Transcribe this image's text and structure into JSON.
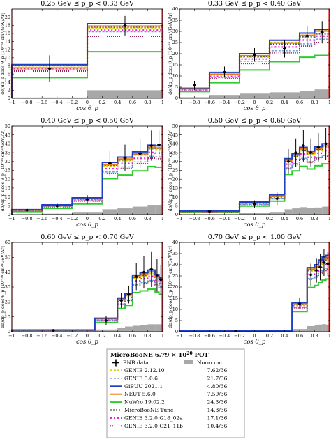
{
  "chart_data": [
    {
      "type": "step",
      "title": "0.25 GeV ≤ p_p < 0.33 GeV",
      "xlabel": "cos θ_p",
      "ylabel": "dσ/dp_p dcos θ_p [10⁻³⁸ cm²/GeV/Ar]",
      "xlim": [
        -1,
        1
      ],
      "ylim": [
        0,
        22
      ],
      "xticks": [
        -1,
        -0.8,
        -0.6,
        -0.4,
        -0.2,
        0,
        0.2,
        0.4,
        0.6,
        0.8,
        1
      ],
      "xticklabels": [
        "−1",
        "−0.8",
        "−0.6",
        "−0.4",
        "−0.2",
        "0",
        "0.2",
        "0.4",
        "0.6",
        "0.8",
        "1"
      ],
      "yticks": [
        0,
        2,
        4,
        6,
        8,
        10,
        12,
        14,
        16,
        18,
        20
      ],
      "bin_edges": [
        -1,
        0,
        1
      ],
      "data": {
        "x": [
          -0.5,
          0.5
        ],
        "y": [
          7.3,
          17.9
        ],
        "yerr": [
          3.3,
          2.4
        ]
      },
      "norm_unc": [
        0.2,
        2.0
      ],
      "models": {
        "genie2": [
          8.0,
          17.3
        ],
        "genie3": [
          7.0,
          16.4
        ],
        "gibuu": [
          8.3,
          18.4
        ],
        "neut": [
          7.5,
          17.8
        ],
        "nuwro": [
          5.1,
          11.5
        ],
        "uboone_tune": [
          8.1,
          17.6
        ],
        "g18": [
          7.3,
          16.8
        ],
        "g21": [
          6.7,
          15.3
        ]
      }
    },
    {
      "type": "step",
      "title": "0.33 GeV ≤ p_p < 0.40 GeV",
      "xlabel": "cos θ_p",
      "ylabel": "dσ/dp_p dcos θ_p [10⁻³⁸ cm²/GeV/Ar]",
      "xlim": [
        -1,
        1
      ],
      "ylim": [
        0,
        40
      ],
      "xticks": [
        -1,
        -0.8,
        -0.6,
        -0.4,
        -0.2,
        0,
        0.2,
        0.4,
        0.6,
        0.8,
        1
      ],
      "xticklabels": [
        "−1",
        "−0.8",
        "−0.6",
        "−0.4",
        "−0.2",
        "0",
        "0.2",
        "0.4",
        "0.6",
        "0.8",
        "1"
      ],
      "yticks": [
        0,
        5,
        10,
        15,
        20,
        25,
        30,
        35,
        40
      ],
      "bin_edges": [
        -1,
        -0.6,
        -0.2,
        0.2,
        0.6,
        0.8,
        1
      ],
      "data": {
        "x": [
          -0.8,
          -0.4,
          0,
          0.4,
          0.7,
          0.9
        ],
        "y": [
          5.8,
          11.7,
          19.5,
          22.3,
          28.0,
          29.6
        ],
        "yerr": [
          2.0,
          2.5,
          3.0,
          4.0,
          4.5,
          5.0
        ]
      },
      "norm_unc": [
        0.5,
        1.2,
        2.1,
        2.7,
        3.4,
        4.0
      ],
      "models": {
        "genie2": [
          4.3,
          10.6,
          18.5,
          25.0,
          28.2,
          30.3
        ],
        "genie3": [
          3.9,
          9.3,
          16.6,
          21.3,
          24.4,
          26.5
        ],
        "gibuu": [
          4.5,
          11.6,
          20.0,
          26.0,
          29.2,
          30.9
        ],
        "neut": [
          4.3,
          10.8,
          19.1,
          24.8,
          28.2,
          30.1
        ],
        "nuwro": [
          3.0,
          7.0,
          12.7,
          16.4,
          18.4,
          19.2
        ],
        "uboone_tune": [
          4.4,
          10.8,
          18.8,
          24.4,
          27.6,
          28.9
        ],
        "g18": [
          3.9,
          9.8,
          17.6,
          23.0,
          26.1,
          27.9
        ],
        "g21": [
          3.6,
          8.8,
          15.6,
          20.4,
          23.4,
          25.0
        ]
      }
    },
    {
      "type": "step",
      "title": "0.40 GeV ≤ p_p < 0.50 GeV",
      "xlabel": "cos θ_p",
      "ylabel": "dσ/dp_p dcos θ_p [10⁻³⁸ cm²/GeV/Ar]",
      "xlim": [
        -1,
        1
      ],
      "ylim": [
        0,
        50
      ],
      "xticks": [
        -1,
        -0.8,
        -0.6,
        -0.4,
        -0.2,
        0,
        0.2,
        0.4,
        0.6,
        0.8,
        1
      ],
      "xticklabels": [
        "−1",
        "−0.8",
        "−0.6",
        "−0.4",
        "−0.2",
        "0",
        "0.2",
        "0.4",
        "0.6",
        "0.8",
        "1"
      ],
      "yticks": [
        0,
        5,
        10,
        15,
        20,
        25,
        30,
        35,
        40,
        45,
        50
      ],
      "bin_edges": [
        -1,
        -0.6,
        -0.2,
        0.2,
        0.4,
        0.6,
        0.8,
        0.9,
        1
      ],
      "data": {
        "x": [
          -0.8,
          -0.4,
          0,
          0.3,
          0.5,
          0.7,
          0.85,
          0.95
        ],
        "y": [
          2.5,
          4.8,
          8.5,
          29.0,
          32.0,
          34.5,
          39.0,
          39.5
        ],
        "yerr": [
          1.1,
          1.5,
          2.5,
          7.0,
          7.5,
          8.0,
          8.5,
          8.0
        ]
      },
      "norm_unc": [
        0.2,
        0.5,
        1.5,
        3.0,
        3.5,
        4.5,
        5.5,
        5.5
      ],
      "models": {
        "genie2": [
          2.6,
          5.0,
          8.6,
          27.5,
          30.5,
          33.6,
          37.1,
          36.9
        ],
        "genie3": [
          2.3,
          4.5,
          7.8,
          24.1,
          27.0,
          29.8,
          33.0,
          32.6
        ],
        "gibuu": [
          2.8,
          5.5,
          9.5,
          29.5,
          32.5,
          35.5,
          39.2,
          38.9
        ],
        "neut": [
          2.7,
          5.2,
          9.0,
          28.3,
          31.4,
          34.4,
          38.1,
          37.7
        ],
        "nuwro": [
          1.7,
          3.5,
          6.0,
          20.3,
          22.4,
          24.7,
          27.2,
          26.8
        ],
        "uboone_tune": [
          2.6,
          5.1,
          8.8,
          28.0,
          31.0,
          34.1,
          37.6,
          37.5
        ],
        "g18": [
          2.4,
          4.8,
          8.2,
          26.0,
          28.9,
          31.8,
          35.1,
          34.8
        ],
        "g21": [
          2.2,
          4.4,
          7.6,
          23.3,
          26.1,
          28.8,
          31.9,
          31.6
        ]
      }
    },
    {
      "type": "step",
      "title": "0.50 GeV ≤ p_p < 0.60 GeV",
      "xlabel": "cos θ_p",
      "ylabel": "dσ/dp_p dcos θ_p [10⁻³⁸ cm²/GeV/Ar]",
      "xlim": [
        -1,
        1
      ],
      "ylim": [
        0,
        50
      ],
      "xticks": [
        -1,
        -0.8,
        -0.6,
        -0.4,
        -0.2,
        0,
        0.2,
        0.4,
        0.6,
        0.8,
        1
      ],
      "xticklabels": [
        "−1",
        "−0.8",
        "−0.6",
        "−0.4",
        "−0.2",
        "0",
        "0.2",
        "0.4",
        "0.6",
        "0.8",
        "1"
      ],
      "yticks": [
        0,
        5,
        10,
        15,
        20,
        25,
        30,
        35,
        40,
        45,
        50
      ],
      "bin_edges": [
        -1,
        -0.2,
        0.2,
        0.4,
        0.5,
        0.6,
        0.7,
        0.8,
        0.9,
        1
      ],
      "data": {
        "x": [
          -0.6,
          0,
          0.3,
          0.45,
          0.55,
          0.65,
          0.75,
          0.85,
          0.95
        ],
        "y": [
          1.8,
          6.0,
          9.0,
          30.0,
          35.0,
          39.0,
          35.0,
          38.0,
          40.0
        ],
        "yerr": [
          0.8,
          2.0,
          3.5,
          7.0,
          8.0,
          9.0,
          8.0,
          8.0,
          9.0
        ]
      },
      "norm_unc": [
        0.2,
        0.8,
        1.5,
        3.0,
        3.5,
        4.2,
        3.8,
        4.0,
        4.5
      ],
      "models": {
        "genie2": [
          1.9,
          6.6,
          10.4,
          30.0,
          32.7,
          36.1,
          34.1,
          36.5,
          37.9
        ],
        "genie3": [
          1.7,
          5.8,
          9.2,
          26.4,
          28.8,
          31.8,
          30.0,
          32.1,
          33.4
        ],
        "gibuu": [
          2.0,
          7.1,
          11.2,
          31.6,
          34.4,
          38.0,
          35.9,
          38.4,
          40.0
        ],
        "neut": [
          1.9,
          6.9,
          10.8,
          30.8,
          33.6,
          37.0,
          35.0,
          37.4,
          38.9
        ],
        "nuwro": [
          1.3,
          4.8,
          7.6,
          22.7,
          24.7,
          27.3,
          25.8,
          27.6,
          28.7
        ],
        "uboone_tune": [
          1.9,
          6.7,
          10.6,
          30.4,
          33.1,
          36.6,
          34.6,
          37.0,
          38.4
        ],
        "g18": [
          1.8,
          6.3,
          9.9,
          28.5,
          31.1,
          34.3,
          32.4,
          34.7,
          36.1
        ],
        "g21": [
          1.6,
          5.7,
          8.9,
          25.9,
          28.2,
          31.2,
          29.5,
          31.6,
          32.8
        ]
      }
    },
    {
      "type": "step",
      "title": "0.60 GeV ≤ p_p < 0.70 GeV",
      "xlabel": "cos θ_p",
      "ylabel": "dσ/dp_p dcos θ_p [10⁻³⁸ cm²/GeV/Ar]",
      "xlim": [
        -1,
        1
      ],
      "ylim": [
        0,
        60
      ],
      "xticks": [
        -1,
        -0.8,
        -0.6,
        -0.4,
        -0.2,
        0,
        0.2,
        0.4,
        0.6,
        0.8,
        1
      ],
      "xticklabels": [
        "−1",
        "−0.8",
        "−0.6",
        "−0.4",
        "−0.2",
        "0",
        "0.2",
        "0.4",
        "0.6",
        "0.8",
        "1"
      ],
      "yticks": [
        0,
        10,
        20,
        30,
        40,
        50,
        60
      ],
      "bin_edges": [
        -1,
        0.1,
        0.4,
        0.5,
        0.6,
        0.7,
        0.8,
        0.9,
        0.95,
        1
      ],
      "data": {
        "x": [
          -0.45,
          0.25,
          0.45,
          0.55,
          0.65,
          0.75,
          0.85,
          0.925,
          0.975
        ],
        "y": [
          1.0,
          7.5,
          21.0,
          25.0,
          37.0,
          40.0,
          42.0,
          38.0,
          35.0
        ],
        "yerr": [
          0.6,
          3.0,
          5.0,
          6.0,
          9.0,
          11.0,
          12.0,
          11.0,
          10.0
        ]
      },
      "norm_unc": [
        0.3,
        1.5,
        2.5,
        3.5,
        4.0,
        4.5,
        5.0,
        5.0,
        5.0
      ],
      "models": {
        "genie2": [
          1.1,
          8.6,
          21.4,
          24.3,
          36.0,
          37.5,
          39.2,
          36.4,
          34.2
        ],
        "genie3": [
          1.0,
          7.5,
          18.8,
          21.4,
          31.7,
          33.0,
          34.5,
          32.0,
          30.1
        ],
        "gibuu": [
          1.2,
          9.1,
          22.6,
          25.6,
          38.0,
          39.6,
          41.4,
          38.4,
          36.1
        ],
        "neut": [
          1.1,
          8.8,
          22.0,
          25.0,
          37.0,
          38.6,
          40.3,
          37.4,
          35.2
        ],
        "nuwro": [
          0.8,
          6.2,
          15.6,
          17.7,
          26.3,
          27.4,
          28.6,
          26.6,
          25.0
        ],
        "uboone_tune": [
          1.1,
          8.7,
          21.7,
          24.7,
          36.6,
          38.1,
          39.8,
          37.0,
          34.8
        ],
        "g18": [
          1.0,
          8.1,
          20.3,
          23.1,
          34.2,
          35.6,
          37.2,
          34.6,
          32.5
        ],
        "g21": [
          0.9,
          7.4,
          18.5,
          21.0,
          31.1,
          32.4,
          33.9,
          31.5,
          29.6
        ]
      }
    },
    {
      "type": "step",
      "title": "0.70 GeV ≤ p_p < 1.00 GeV",
      "xlabel": "cos θ_p",
      "ylabel": "dσ/dp_p dcos θ_p [10⁻³⁸ cm²/GeV/Ar]",
      "xlim": [
        -1,
        1
      ],
      "ylim": [
        0,
        40
      ],
      "xticks": [
        -1,
        -0.8,
        -0.6,
        -0.4,
        -0.2,
        0,
        0.2,
        0.4,
        0.6,
        0.8,
        1
      ],
      "xticklabels": [
        "−1",
        "−0.8",
        "−0.6",
        "−0.4",
        "−0.2",
        "0",
        "0.2",
        "0.4",
        "0.6",
        "0.8",
        "1"
      ],
      "yticks": [
        0,
        5,
        10,
        15,
        20,
        25,
        30,
        35,
        40
      ],
      "bin_edges": [
        -1,
        0.5,
        0.7,
        0.8,
        0.85,
        0.9,
        0.95,
        1
      ],
      "data": {
        "x": [
          -0.25,
          0.6,
          0.75,
          0.825,
          0.875,
          0.925,
          0.975
        ],
        "y": [
          0.3,
          12.5,
          25.5,
          27.5,
          29.0,
          31.0,
          30.5
        ],
        "yerr": [
          0.3,
          2.5,
          5.0,
          5.5,
          6.0,
          6.0,
          5.5
        ]
      },
      "norm_unc": [
        0.1,
        1.2,
        2.5,
        3.0,
        3.2,
        3.4,
        3.2
      ],
      "models": {
        "genie2": [
          0.4,
          12.4,
          27.2,
          28.4,
          30.4,
          31.8,
          32.4
        ],
        "genie3": [
          0.3,
          10.9,
          23.9,
          25.0,
          26.8,
          28.0,
          28.5
        ],
        "gibuu": [
          0.4,
          13.0,
          28.7,
          30.0,
          32.1,
          33.5,
          34.2
        ],
        "neut": [
          0.4,
          12.7,
          28.0,
          29.2,
          31.2,
          32.6,
          33.3
        ],
        "nuwro": [
          0.3,
          9.0,
          19.8,
          20.7,
          22.2,
          23.1,
          23.6
        ],
        "uboone_tune": [
          0.4,
          12.6,
          27.6,
          28.9,
          30.9,
          32.2,
          32.9
        ],
        "g18": [
          0.4,
          11.7,
          25.8,
          27.0,
          28.8,
          30.1,
          30.7
        ],
        "g21": [
          0.3,
          10.7,
          23.5,
          24.5,
          26.2,
          27.4,
          27.9
        ]
      }
    }
  ],
  "legend": {
    "title_prefix": "MicroBooNE 6.79 × 10",
    "title_exp": "20",
    "title_suffix": " POT",
    "data_label": "BNB data",
    "norm_label": "Norm unc.",
    "entries": [
      {
        "key": "genie2",
        "label": "GENIE 2.12.10",
        "chi2": "7.62/36",
        "color": "#d4d400",
        "dash": "3,2",
        "width": 2.2
      },
      {
        "key": "genie3",
        "label": "GENIE 3.0.6",
        "chi2": "21.7/36",
        "color": "#5c9bd6",
        "dash": "3,2",
        "width": 1.4
      },
      {
        "key": "gibuu",
        "label": "GiBUU 2021.1",
        "chi2": "4.80/36",
        "color": "#1f3fc4",
        "dash": "",
        "width": 2.0
      },
      {
        "key": "neut",
        "label": "NEUT 5.6.0",
        "chi2": "7.59/36",
        "color": "#f07a10",
        "dash": "",
        "width": 2.0
      },
      {
        "key": "nuwro",
        "label": "NuWro 19.02.2",
        "chi2": "24.3/36",
        "color": "#2fcc2f",
        "dash": "",
        "width": 2.0
      },
      {
        "key": "uboone_tune",
        "label": "MicroBooNE Tune",
        "chi2": "14.3/36",
        "color": "#555555",
        "dash": "2,2",
        "width": 2.2
      },
      {
        "key": "g18",
        "label": "GENIE 3.2.0 G18_02a",
        "chi2": "17.1/36",
        "color": "#e81fd8",
        "dash": "2,3",
        "width": 2.2
      },
      {
        "key": "g21",
        "label": "GENIE 3.2.0 G21_11b",
        "chi2": "10.4/36",
        "color": "#9a1f5a",
        "dash": "1,2",
        "width": 2.0
      }
    ]
  },
  "colors": {
    "norm_band": "#a8a8a8",
    "data": "#000000",
    "red_line": "#d62020"
  }
}
